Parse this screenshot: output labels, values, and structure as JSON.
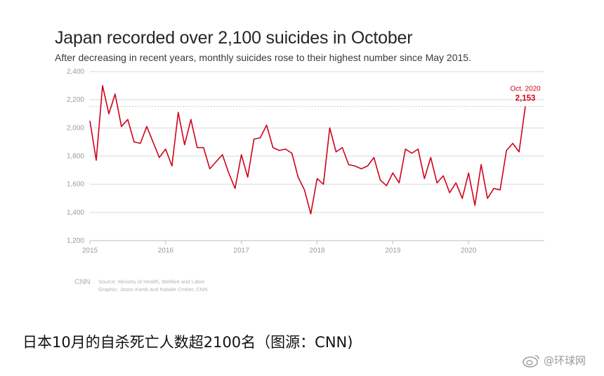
{
  "chart_data": {
    "type": "line",
    "title": "Japan recorded over 2,100 suicides in October",
    "subtitle": "After decreasing in recent years, monthly suicides rose to their highest number since May 2015.",
    "xlabel": "",
    "ylabel": "",
    "ylim": [
      1200,
      2400
    ],
    "yticks": [
      1200,
      1400,
      1600,
      1800,
      2000,
      2200,
      2400
    ],
    "ytick_labels": [
      "1,200",
      "1,400",
      "1,600",
      "1,800",
      "2,000",
      "2,200",
      "2,400"
    ],
    "xticks": [
      "2015",
      "2016",
      "2017",
      "2018",
      "2019",
      "2020"
    ],
    "grid": true,
    "reference_line": 2153,
    "series": [
      {
        "color": "#d0021b",
        "x_start": "2015-01",
        "frequency": "monthly",
        "values": [
          2050,
          1770,
          2300,
          2100,
          2240,
          2010,
          2060,
          1900,
          1890,
          2010,
          1900,
          1790,
          1850,
          1730,
          2110,
          1880,
          2060,
          1860,
          1860,
          1710,
          1760,
          1810,
          1680,
          1570,
          1810,
          1650,
          1920,
          1930,
          2020,
          1860,
          1840,
          1850,
          1820,
          1650,
          1560,
          1390,
          1640,
          1600,
          2000,
          1830,
          1860,
          1740,
          1730,
          1710,
          1730,
          1790,
          1630,
          1590,
          1680,
          1610,
          1850,
          1820,
          1850,
          1640,
          1790,
          1610,
          1660,
          1540,
          1610,
          1500,
          1680,
          1450,
          1740,
          1500,
          1570,
          1560,
          1840,
          1890,
          1830,
          2153
        ]
      }
    ],
    "annotations": [
      {
        "label": "Oct. 2020",
        "value_label": "2,153",
        "x": "2020-10",
        "y": 2153
      }
    ]
  },
  "source_line1": "Source: Ministry of Health, Welfare and Labor",
  "source_line2": "Graphic: Jason Kwok and Natalie Croker, CNN",
  "logo_text": "CNN",
  "caption": "日本10月的自杀死亡人数超2100名（图源：CNN)",
  "watermark": "@环球网",
  "colors": {
    "line": "#d0021b",
    "grid": "#d9d9d9",
    "axis_text": "#9b9b9b"
  }
}
